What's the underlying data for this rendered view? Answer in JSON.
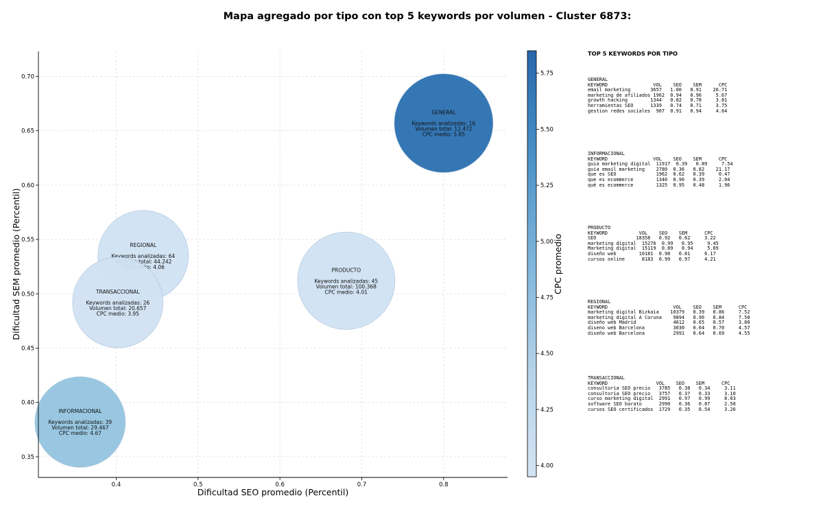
{
  "title": "Mapa agregado por tipo con top 5 keywords por volumen - Cluster 6873:",
  "chart_data": {
    "type": "scatter",
    "xlabel": "Dificultad SEO promedio (Percentil)",
    "ylabel": "Dificultad SEM promedio (Percentil)",
    "colorbar_label": "CPC promedio",
    "xlim": [
      0.305,
      0.878
    ],
    "ylim": [
      0.331,
      0.723
    ],
    "x_ticks": [
      0.4,
      0.5,
      0.6,
      0.7,
      0.8
    ],
    "x_tick_labels": [
      "0.4",
      "0.5",
      "0.6",
      "0.7",
      "0.8"
    ],
    "y_ticks": [
      0.35,
      0.4,
      0.45,
      0.5,
      0.55,
      0.6,
      0.65,
      0.7
    ],
    "y_tick_labels": [
      "0.35",
      "0.40",
      "0.45",
      "0.50",
      "0.55",
      "0.60",
      "0.65",
      "0.70"
    ],
    "colorbar_range": [
      3.95,
      5.85
    ],
    "colorbar_ticks": [
      4.0,
      4.25,
      4.5,
      4.75,
      5.0,
      5.25,
      5.5,
      5.75
    ],
    "colorbar_tick_labels": [
      "4.00",
      "4.25",
      "4.50",
      "4.75",
      "5.00",
      "5.25",
      "5.50",
      "5.75"
    ],
    "grid": true,
    "points": [
      {
        "name": "GENERAL",
        "x": 0.8,
        "y": 0.657,
        "keywords": 16,
        "volume": 12472,
        "cpc": 5.85,
        "line1": "Keywords analizadas: 16",
        "line2": "Volumen total: 12.472",
        "line3": "CPC medio: 5.85",
        "color": "#2a70b1"
      },
      {
        "name": "REGIONAL",
        "x": 0.433,
        "y": 0.535,
        "keywords": 64,
        "volume": 44242,
        "cpc": 4.06,
        "line1": "Keywords analizadas: 64",
        "line2": "Volumen total: 44.242",
        "line3": "CPC medio: 4.06",
        "color": "#d0e1f2"
      },
      {
        "name": "TRANSACCIONAL",
        "x": 0.402,
        "y": 0.492,
        "keywords": 26,
        "volume": 20657,
        "cpc": 3.95,
        "line1": "Keywords analizadas: 26",
        "line2": "Volumen total: 20.657",
        "line3": "CPC medio: 3.95",
        "color": "#d1e2f2"
      },
      {
        "name": "PRODUCTO",
        "x": 0.681,
        "y": 0.512,
        "keywords": 45,
        "volume": 100368,
        "cpc": 4.01,
        "line1": "Keywords analizadas: 45",
        "line2": "Volumen total: 100.368",
        "line3": "CPC medio: 4.01",
        "color": "#d0e1f2"
      },
      {
        "name": "INFORMACIONAL",
        "x": 0.356,
        "y": 0.382,
        "keywords": 39,
        "volume": 29467,
        "cpc": 4.67,
        "line1": "Keywords analizadas: 39",
        "line2": "Volumen total: 29.467",
        "line3": "CPC medio: 4.67",
        "color": "#94c4df"
      }
    ]
  },
  "panel": {
    "title": "TOP 5 KEYWORDS POR TIPO",
    "groups": [
      {
        "name": "GENERAL",
        "text": "GENERAL\nKEYWORD                VOL    SEO    SEM      CPC\nemail marketing       3657   1.00   0.91    26.71\nmarketing de afiliados 1962  0.94   0.96     5.67\ngrowth hacking        1344   0.82   0.78     3.81\nherramientas SEO      1339   0.74   0.71     3.75\ngestion redes sociales  907  0.91   0.94     4.64"
      },
      {
        "name": "INFORMACIONAL",
        "text": "INFORMACIONAL\nKEYWORD                VOL    SEO    SEM      CPC\nguia marketing digital  11917  0.39   0.89     7.54\nguia email marketing    2780  0.36   0.82    21.17\nque es SEO              1962  0.62   0.39     0.47\nque es ecommerce        1340  0.96   0.39     2.04\nqué es ecommerce        1325  0.95   0.48     1.96"
      },
      {
        "name": "PRODUCTO",
        "text": "PRODUCTO\nKEYWORD           VOL    SEO    SEM      CPC\nSEO              18358   0.92   0.62     3.22\nmarketing digital  15276  0.99   0.95     9.45\nMarketing digital  15119  0.89   0.94     5.09\ndiseño web        10181  0.98   0.81     6.17\ncursos online      8183  0.99   0.97     4.21"
      },
      {
        "name": "REGIONAL",
        "text": "REGIONAL\nKEYWORD                       VOL    SEO    SEM      CPC\nmarketing digital Bizkaia    10379   0.39   0.86     7.52\nmarketing digital A Coruna    9894   0.96   0.84     7.50\ndiseño web Madrid             4612   0.65   0.57     3.80\ndiseno web Barcelona          3030   0.64   0.70     4.57\ndiseño web Barcelona          2991   0.64   0.69     4.55"
      },
      {
        "name": "TRANSACCIONAL",
        "text": "TRANSACCIONAL\nKEYWORD                 VOL    SEO    SEM      CPC\nconsultoria SEO precio   3785   0.38   0.34     3.11\nconsultoría SEO precio   3757   0.37   0.33     3.10\ncurso marketing digital  2991   0.97   0.99     8.03\nsoftware SEO barato      2990   0.36   0.07     2.50\ncursos SEO certificados  1729   0.35   0.54     3.26"
      }
    ]
  }
}
